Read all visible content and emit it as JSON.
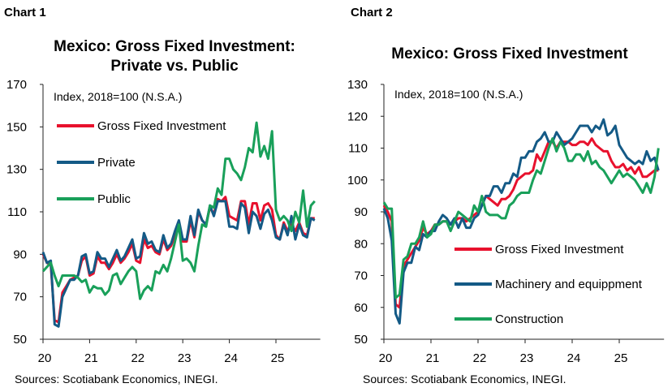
{
  "chart_data": [
    {
      "type": "line",
      "label": "Chart 1",
      "title": [
        "Mexico: Gross Fixed Investment:",
        "Private vs. Public"
      ],
      "ylabel": "Index, 2018=100 (N.S.A.)",
      "source": "Sources: Scotiabank Economics, INEGI.",
      "ylim": [
        50,
        170
      ],
      "yticks": [
        50,
        70,
        90,
        110,
        130,
        150,
        170
      ],
      "xticks": [
        "20",
        "21",
        "22",
        "23",
        "24",
        "25"
      ],
      "x_start": "2020-01",
      "frequency": "monthly",
      "grid": false,
      "legend": "top-left",
      "series": [
        {
          "name": "Gross Fixed Investment",
          "color": "#e8112d",
          "values": [
            90,
            86,
            85,
            59,
            58,
            72,
            75,
            78,
            79,
            80,
            87,
            89,
            80,
            81,
            89,
            86,
            86,
            83,
            86,
            90,
            86,
            88,
            91,
            95,
            87,
            86,
            97,
            93,
            94,
            91,
            90,
            97,
            92,
            94,
            99,
            105,
            96,
            96,
            106,
            98,
            110,
            106,
            104,
            112,
            109,
            116,
            115,
            117,
            108,
            107,
            106,
            115,
            115,
            104,
            114,
            114,
            106,
            113,
            114,
            111,
            99,
            97,
            105,
            101,
            104,
            101,
            105,
            100,
            99,
            107,
            107
          ]
        },
        {
          "name": "Private",
          "color": "#145a86",
          "values": [
            91,
            86,
            87,
            57,
            56,
            70,
            74,
            78,
            78,
            80,
            89,
            90,
            81,
            82,
            91,
            88,
            88,
            84,
            88,
            92,
            87,
            89,
            93,
            97,
            88,
            89,
            100,
            95,
            96,
            92,
            91,
            99,
            93,
            95,
            101,
            106,
            97,
            97,
            108,
            99,
            111,
            106,
            104,
            113,
            108,
            115,
            115,
            115,
            103,
            103,
            102,
            114,
            112,
            100,
            110,
            108,
            102,
            109,
            111,
            106,
            98,
            97,
            104,
            99,
            108,
            97,
            104,
            99,
            98,
            107,
            106
          ]
        },
        {
          "name": "Public",
          "color": "#19a05a",
          "values": [
            82,
            84,
            86,
            80,
            75,
            80,
            80,
            80,
            80,
            79,
            77,
            78,
            72,
            75,
            74,
            74,
            71,
            73,
            80,
            81,
            76,
            79,
            82,
            84,
            82,
            69,
            73,
            75,
            73,
            82,
            81,
            85,
            82,
            88,
            96,
            104,
            87,
            88,
            86,
            82,
            94,
            104,
            103,
            113,
            112,
            121,
            118,
            135,
            135,
            130,
            128,
            125,
            131,
            140,
            138,
            152,
            136,
            141,
            135,
            148,
            111,
            106,
            108,
            106,
            101,
            110,
            105,
            120,
            103,
            113,
            115
          ]
        }
      ]
    },
    {
      "type": "line",
      "label": "Chart 2",
      "title": [
        "Mexico: Gross Fixed Investment"
      ],
      "ylabel": "Index, 2018=100 (N.S.A.)",
      "source": "Sources: Scotiabank Economics, INEGI.",
      "ylim": [
        50,
        130
      ],
      "yticks": [
        50,
        60,
        70,
        80,
        90,
        100,
        110,
        120,
        130
      ],
      "xticks": [
        "20",
        "21",
        "22",
        "23",
        "24",
        "25"
      ],
      "x_start": "2020-01",
      "frequency": "monthly",
      "grid": false,
      "legend": "bottom-center",
      "series": [
        {
          "name": "Gross Fixed Investment",
          "color": "#e8112d",
          "values": [
            92,
            90,
            87,
            61,
            60,
            73,
            75,
            77,
            79,
            81,
            85,
            83,
            84,
            86,
            86,
            87,
            87,
            86,
            87,
            88,
            88,
            87,
            88,
            89,
            90,
            92,
            95,
            94,
            93,
            92,
            94,
            94,
            95,
            97,
            100,
            101,
            102,
            102,
            103,
            108,
            106,
            109,
            112,
            112,
            110,
            112,
            112,
            112,
            111,
            111,
            112,
            112,
            111,
            113,
            111,
            110,
            109,
            109,
            106,
            104,
            104,
            105,
            103,
            104,
            102,
            104,
            101,
            101,
            102,
            103,
            103
          ]
        },
        {
          "name": "Machinery and equippment",
          "color": "#145a86",
          "values": [
            91,
            88,
            81,
            58,
            55,
            71,
            74,
            74,
            79,
            78,
            83,
            82,
            84,
            84,
            87,
            89,
            88,
            86,
            88,
            85,
            88,
            85,
            85,
            88,
            89,
            92,
            95,
            95,
            98,
            98,
            96,
            99,
            99,
            102,
            101,
            107,
            107,
            109,
            109,
            112,
            113,
            115,
            112,
            112,
            115,
            113,
            111,
            112,
            113,
            115,
            117,
            117,
            117,
            115,
            117,
            116,
            119,
            114,
            115,
            117,
            111,
            109,
            107,
            106,
            105,
            106,
            105,
            109,
            106,
            107,
            103
          ]
        },
        {
          "name": "Construction",
          "color": "#19a05a",
          "values": [
            93,
            91,
            91,
            63,
            64,
            75,
            76,
            80,
            80,
            82,
            87,
            82,
            83,
            86,
            86,
            87,
            87,
            84,
            87,
            90,
            89,
            88,
            87,
            92,
            90,
            95,
            90,
            89,
            89,
            89,
            88,
            88,
            92,
            93,
            95,
            96,
            96,
            96,
            100,
            103,
            102,
            106,
            110,
            113,
            109,
            112,
            110,
            106,
            106,
            108,
            108,
            106,
            109,
            105,
            106,
            104,
            103,
            101,
            99,
            101,
            103,
            101,
            102,
            101,
            100,
            98,
            96,
            99,
            96,
            101,
            110
          ]
        }
      ]
    }
  ]
}
